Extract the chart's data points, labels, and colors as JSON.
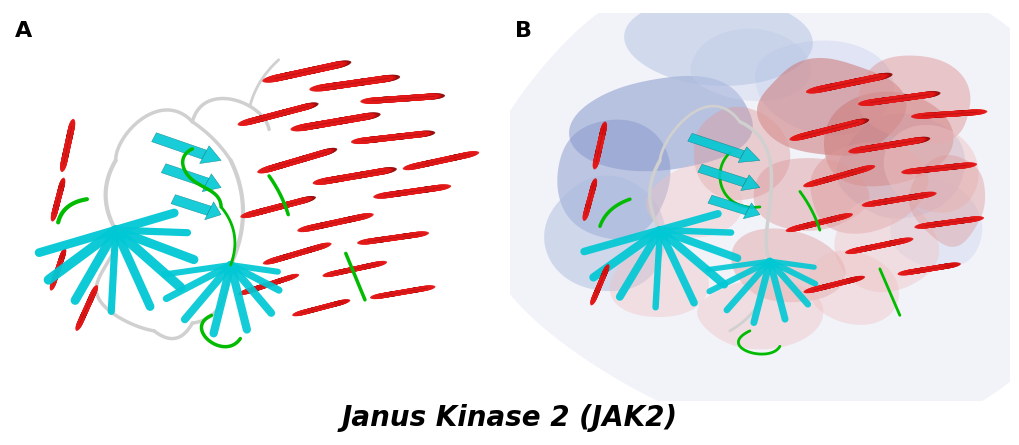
{
  "title": "Janus Kinase 2 (JAK2)",
  "title_fontsize": 20,
  "title_fontweight": "bold",
  "title_fontstyle": "italic",
  "label_A": "A",
  "label_B": "B",
  "label_fontsize": 16,
  "label_fontweight": "bold",
  "background_color": "#ffffff",
  "fig_width": 10.2,
  "fig_height": 4.45,
  "helix_red": "#dd1111",
  "helix_red2": "#cc2222",
  "helix_cyan": "#00c8d4",
  "helix_cyan2": "#22d4e0",
  "loop_green": "#00bb00",
  "loop_white": "#d0d0d0",
  "loop_gray": "#b0b0b0",
  "surface_blue_dark": "#8899cc",
  "surface_blue_mid": "#aabbdd",
  "surface_blue_light": "#ccd4ee",
  "surface_red_dark": "#cc7777",
  "surface_red_mid": "#dd9999",
  "surface_red_light": "#eec0c0",
  "surface_white": "#f0f0f8"
}
